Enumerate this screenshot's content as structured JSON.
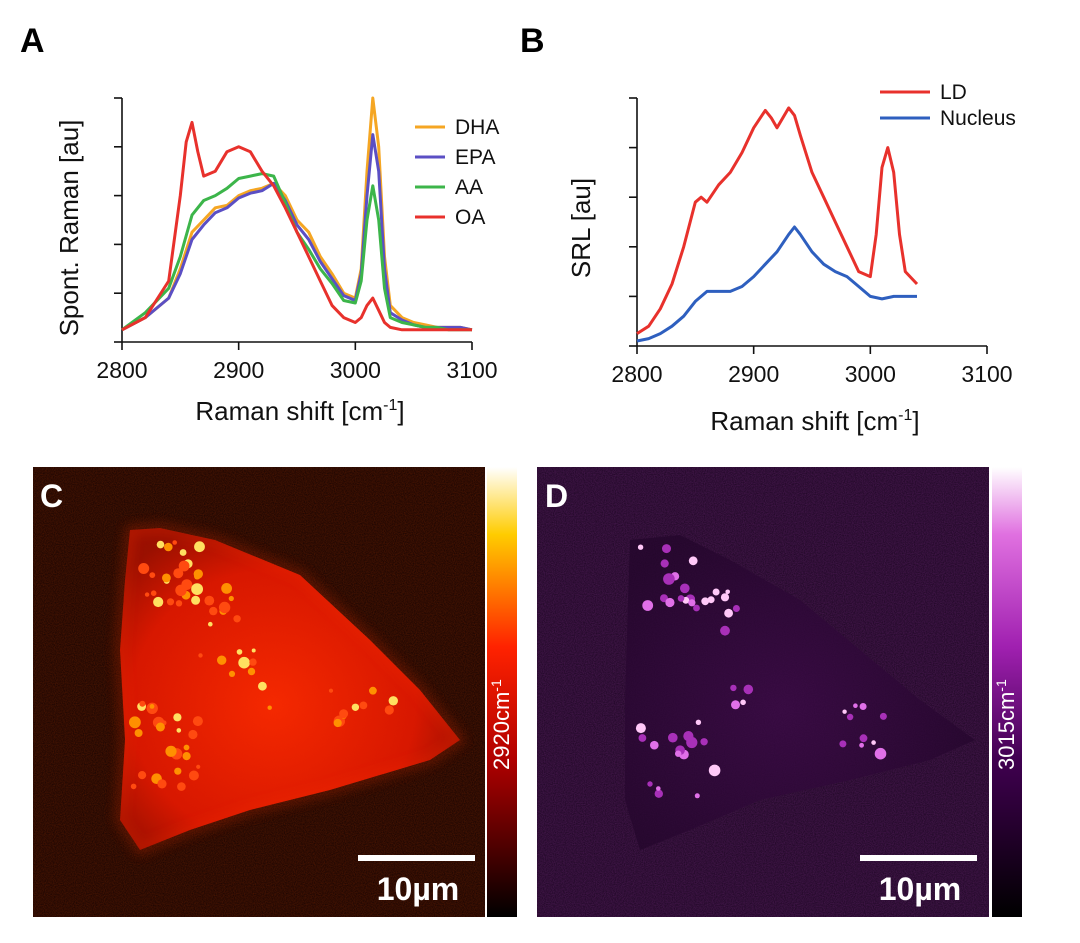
{
  "chart_data": [
    {
      "panel": "A",
      "type": "line",
      "xlabel": "Raman shift [cm",
      "xlabel_sup": "-1",
      "xlabel_close": "]",
      "ylabel": "Spont. Raman [au]",
      "xlim": [
        2800,
        3100
      ],
      "ylim": [
        0,
        1
      ],
      "xticks": [
        2800,
        2900,
        3000,
        3100
      ],
      "legend_position": "top-right",
      "series": [
        {
          "name": "DHA",
          "color": "#f5a623",
          "x": [
            2800,
            2820,
            2840,
            2850,
            2860,
            2870,
            2880,
            2890,
            2900,
            2910,
            2920,
            2930,
            2940,
            2950,
            2960,
            2970,
            2980,
            2990,
            3000,
            3005,
            3010,
            3015,
            3020,
            3025,
            3030,
            3040,
            3050,
            3060,
            3070,
            3080,
            3090,
            3100
          ],
          "y": [
            0.05,
            0.1,
            0.18,
            0.3,
            0.45,
            0.5,
            0.55,
            0.56,
            0.6,
            0.62,
            0.63,
            0.65,
            0.6,
            0.5,
            0.45,
            0.35,
            0.28,
            0.2,
            0.18,
            0.3,
            0.7,
            1.0,
            0.8,
            0.35,
            0.15,
            0.1,
            0.08,
            0.07,
            0.06,
            0.06,
            0.06,
            0.05
          ]
        },
        {
          "name": "EPA",
          "color": "#5b4fc4",
          "x": [
            2800,
            2820,
            2840,
            2850,
            2860,
            2870,
            2880,
            2890,
            2900,
            2910,
            2920,
            2930,
            2940,
            2950,
            2960,
            2970,
            2980,
            2990,
            3000,
            3005,
            3010,
            3015,
            3020,
            3025,
            3030,
            3040,
            3050,
            3060,
            3070,
            3080,
            3090,
            3100
          ],
          "y": [
            0.05,
            0.1,
            0.18,
            0.28,
            0.42,
            0.48,
            0.53,
            0.55,
            0.59,
            0.61,
            0.62,
            0.65,
            0.58,
            0.48,
            0.42,
            0.33,
            0.26,
            0.19,
            0.17,
            0.28,
            0.6,
            0.85,
            0.7,
            0.3,
            0.12,
            0.09,
            0.07,
            0.06,
            0.06,
            0.06,
            0.06,
            0.05
          ]
        },
        {
          "name": "AA",
          "color": "#3cb54a",
          "x": [
            2800,
            2820,
            2840,
            2850,
            2860,
            2870,
            2880,
            2890,
            2900,
            2910,
            2920,
            2930,
            2940,
            2950,
            2960,
            2970,
            2980,
            2990,
            3000,
            3005,
            3010,
            3015,
            3020,
            3025,
            3030,
            3040,
            3050,
            3060,
            3070,
            3080,
            3090,
            3100
          ],
          "y": [
            0.05,
            0.12,
            0.22,
            0.35,
            0.52,
            0.58,
            0.6,
            0.63,
            0.67,
            0.68,
            0.69,
            0.68,
            0.57,
            0.45,
            0.38,
            0.3,
            0.24,
            0.17,
            0.16,
            0.25,
            0.5,
            0.64,
            0.5,
            0.22,
            0.1,
            0.08,
            0.07,
            0.06,
            0.06,
            0.05,
            0.05,
            0.05
          ]
        },
        {
          "name": "OA",
          "color": "#e8312c",
          "x": [
            2800,
            2820,
            2840,
            2850,
            2855,
            2860,
            2865,
            2870,
            2880,
            2890,
            2900,
            2910,
            2920,
            2930,
            2940,
            2950,
            2960,
            2970,
            2980,
            2990,
            3000,
            3005,
            3010,
            3015,
            3020,
            3025,
            3030,
            3040,
            3050,
            3060,
            3070,
            3080,
            3090,
            3100
          ],
          "y": [
            0.05,
            0.1,
            0.25,
            0.6,
            0.82,
            0.9,
            0.78,
            0.68,
            0.7,
            0.78,
            0.8,
            0.78,
            0.7,
            0.64,
            0.55,
            0.45,
            0.35,
            0.25,
            0.15,
            0.1,
            0.08,
            0.1,
            0.15,
            0.18,
            0.13,
            0.08,
            0.06,
            0.05,
            0.05,
            0.05,
            0.05,
            0.05,
            0.05,
            0.05
          ]
        }
      ]
    },
    {
      "panel": "B",
      "type": "line",
      "xlabel": "Raman shift [cm",
      "xlabel_sup": "-1",
      "xlabel_close": "]",
      "ylabel": "SRL [au]",
      "xlim": [
        2800,
        3100
      ],
      "ylim": [
        0,
        1
      ],
      "xticks": [
        2800,
        2900,
        3000,
        3100
      ],
      "legend_position": "top-right",
      "series": [
        {
          "name": "LD",
          "color": "#e8312c",
          "x": [
            2800,
            2810,
            2820,
            2830,
            2840,
            2850,
            2855,
            2860,
            2870,
            2880,
            2890,
            2900,
            2910,
            2915,
            2920,
            2930,
            2935,
            2940,
            2950,
            2960,
            2970,
            2980,
            2990,
            3000,
            3005,
            3010,
            3015,
            3020,
            3025,
            3030,
            3040
          ],
          "y": [
            0.05,
            0.08,
            0.15,
            0.25,
            0.4,
            0.58,
            0.6,
            0.58,
            0.65,
            0.7,
            0.78,
            0.88,
            0.95,
            0.92,
            0.88,
            0.96,
            0.93,
            0.85,
            0.7,
            0.6,
            0.5,
            0.4,
            0.3,
            0.28,
            0.45,
            0.72,
            0.8,
            0.7,
            0.45,
            0.3,
            0.25
          ]
        },
        {
          "name": "Nucleus",
          "color": "#2e5fbf",
          "x": [
            2800,
            2810,
            2820,
            2830,
            2840,
            2850,
            2860,
            2870,
            2880,
            2890,
            2900,
            2910,
            2920,
            2930,
            2935,
            2940,
            2950,
            2960,
            2970,
            2980,
            2990,
            3000,
            3010,
            3020,
            3030,
            3040
          ],
          "y": [
            0.02,
            0.03,
            0.05,
            0.08,
            0.12,
            0.18,
            0.22,
            0.22,
            0.22,
            0.24,
            0.28,
            0.33,
            0.38,
            0.45,
            0.48,
            0.45,
            0.38,
            0.33,
            0.3,
            0.28,
            0.24,
            0.2,
            0.19,
            0.2,
            0.2,
            0.2
          ]
        }
      ]
    }
  ],
  "images": {
    "c": {
      "letter": "C",
      "colorbar_label": "2920cm",
      "colorbar_sup": "-1",
      "scale_bar": "10µm"
    },
    "d": {
      "letter": "D",
      "colorbar_label": "3015cm",
      "colorbar_sup": "-1",
      "scale_bar": "10µm"
    }
  },
  "colors": {
    "hot_high": "#ffffff",
    "hot_mid": "#ff2200",
    "purple_high": "#ffffff",
    "purple_mid": "#b030c0"
  }
}
